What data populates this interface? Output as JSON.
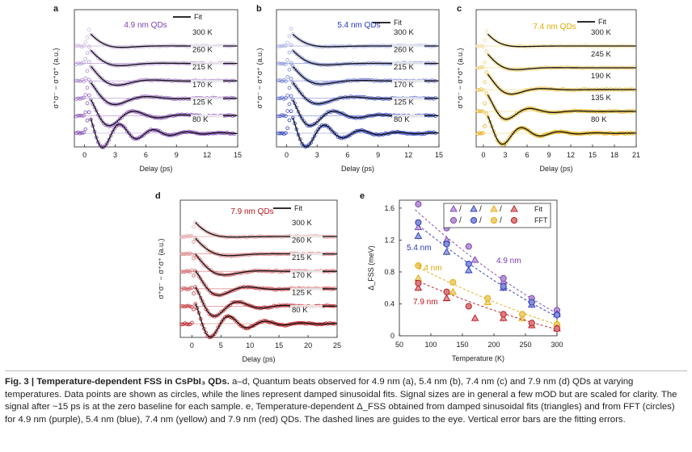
{
  "colors": {
    "purple": "#7a3fb0",
    "blue": "#2436b8",
    "yellow": "#e0a800",
    "red": "#b8141c",
    "fit": "#111111"
  },
  "chart_data": [
    {
      "type": "line",
      "panel": "a",
      "sample_label": "4.9 nm QDs",
      "legend": "Fit",
      "xlabel": "Delay (ps)",
      "ylabel": "σ⁺σ⁻ − σ⁺σ⁺ (a.u.)",
      "xlim": [
        -1,
        15
      ],
      "xticks": [
        "0",
        "3",
        "6",
        "9",
        "12",
        "15"
      ],
      "color": "#7a3fb0",
      "series_labels": [
        "300 K",
        "260 K",
        "215 K",
        "170 K",
        "125 K",
        "80 K"
      ],
      "period_ps": [
        9.0,
        8.2,
        7.0,
        6.3,
        4.8,
        3.3
      ],
      "decay_ps": [
        1.6,
        1.8,
        2.2,
        2.5,
        3.0,
        3.5
      ]
    },
    {
      "type": "line",
      "panel": "b",
      "sample_label": "5.4 nm QDs",
      "legend": "Fit",
      "xlabel": "Delay (ps)",
      "ylabel": "σ⁺σ⁻ − σ⁺σ⁺ (a.u.)",
      "xlim": [
        -1,
        15
      ],
      "xticks": [
        "0",
        "3",
        "6",
        "9",
        "12",
        "15"
      ],
      "color": "#2436b8",
      "series_labels": [
        "300 K",
        "260 K",
        "215 K",
        "170 K",
        "125 K",
        "80 K"
      ],
      "period_ps": [
        11.0,
        9.5,
        7.8,
        6.6,
        4.6,
        3.6
      ],
      "decay_ps": [
        1.5,
        1.7,
        2.0,
        2.4,
        2.9,
        3.4
      ]
    },
    {
      "type": "line",
      "panel": "c",
      "sample_label": "7.4 nm QDs",
      "legend": "Fit",
      "xlabel": "Delay (ps)",
      "ylabel": "σ⁺σ⁻ − σ⁺σ⁺ (a.u.)",
      "xlim": [
        -1,
        21
      ],
      "xticks": [
        "0",
        "3",
        "6",
        "9",
        "12",
        "15",
        "18",
        "21"
      ],
      "color": "#e0a800",
      "series_labels": [
        "300 K",
        "245 K",
        "190 K",
        "135 K",
        "80 K"
      ],
      "period_ps": [
        14.0,
        11.0,
        8.5,
        6.5,
        5.2
      ],
      "decay_ps": [
        1.8,
        2.2,
        2.8,
        3.3,
        3.8
      ]
    },
    {
      "type": "line",
      "panel": "d",
      "sample_label": "7.9 nm QDs",
      "legend": "Fit",
      "xlabel": "Delay (ps)",
      "ylabel": "σ⁺σ⁻ − σ⁺σ⁺ (a.u.)",
      "xlim": [
        -2,
        25
      ],
      "xticks": [
        "0",
        "5",
        "10",
        "15",
        "20",
        "25"
      ],
      "color": "#b8141c",
      "series_labels": [
        "300 K",
        "260 K",
        "215 K",
        "170 K",
        "125 K",
        "80 K"
      ],
      "period_ps": [
        20.0,
        16.0,
        13.0,
        10.0,
        8.0,
        6.3
      ],
      "decay_ps": [
        2.5,
        3.0,
        3.5,
        4.0,
        4.8,
        5.5
      ]
    },
    {
      "type": "scatter",
      "panel": "e",
      "xlabel": "Temperature (K)",
      "ylabel": "Δ_FSS (meV)",
      "xlim": [
        50,
        300
      ],
      "ylim": [
        0,
        1.7
      ],
      "xticks": [
        "50",
        "100",
        "150",
        "200",
        "250",
        "300"
      ],
      "yticks": [
        "0",
        "0.4",
        "0.8",
        "1.2",
        "1.6"
      ],
      "legend_rows": [
        {
          "separator": "/",
          "label": "Fit"
        },
        {
          "separator": "/",
          "label": "FFT"
        }
      ],
      "series": [
        {
          "name": "4.9 nm",
          "color": "#7a3fb0",
          "fit": {
            "x": [
              80,
              125,
              170,
              215,
              260,
              300
            ],
            "y": [
              1.36,
              1.2,
              0.95,
              0.68,
              0.45,
              0.3
            ]
          },
          "fft": {
            "x": [
              80,
              125,
              160,
              215,
              260,
              300
            ],
            "y": [
              1.65,
              1.35,
              1.12,
              0.72,
              0.47,
              0.32
            ]
          },
          "guide": {
            "x": [
              75,
              300
            ],
            "y": [
              1.58,
              0.28
            ]
          }
        },
        {
          "name": "5.4 nm",
          "color": "#2436b8",
          "fit": {
            "x": [
              80,
              125,
              160,
              215,
              260,
              300
            ],
            "y": [
              1.25,
              1.05,
              0.82,
              0.6,
              0.39,
              0.27
            ]
          },
          "fft": {
            "x": [
              80,
              125,
              160,
              215,
              260,
              300
            ],
            "y": [
              1.42,
              1.15,
              0.9,
              0.62,
              0.42,
              0.26
            ]
          },
          "guide": {
            "x": [
              75,
              300
            ],
            "y": [
              1.42,
              0.24
            ]
          }
        },
        {
          "name": "7.4 nm",
          "color": "#e0a800",
          "fit": {
            "x": [
              80,
              135,
              190,
              245,
              300
            ],
            "y": [
              0.72,
              0.55,
              0.42,
              0.22,
              0.15
            ]
          },
          "fft": {
            "x": [
              80,
              135,
              190,
              245,
              300
            ],
            "y": [
              0.88,
              0.67,
              0.47,
              0.27,
              0.14
            ]
          },
          "guide": {
            "x": [
              75,
              300
            ],
            "y": [
              0.88,
              0.14
            ]
          }
        },
        {
          "name": "7.9 nm",
          "color": "#b8141c",
          "fit": {
            "x": [
              80,
              125,
              170,
              215,
              260,
              300
            ],
            "y": [
              0.6,
              0.47,
              0.22,
              0.22,
              0.13,
              0.09
            ]
          },
          "fft": {
            "x": [
              80,
              125,
              160,
              215,
              260,
              300
            ],
            "y": [
              0.66,
              0.55,
              0.37,
              0.27,
              0.16,
              0.09
            ]
          },
          "guide": {
            "x": [
              75,
              300
            ],
            "y": [
              0.7,
              0.08
            ]
          }
        }
      ]
    }
  ],
  "caption": {
    "title": "Fig. 3 | Temperature-dependent FSS in CsPbI₃ QDs.",
    "text": "a–d, Quantum beats observed for 4.9 nm (a), 5.4 nm (b), 7.4 nm (c) and 7.9 nm (d) QDs at varying temperatures. Data points are shown as circles, while the lines represent damped sinusoidal fits. Signal sizes are in general a few mOD but are scaled for clarity. The signal after ~15 ps is at the zero baseline for each sample. e, Temperature-dependent Δ_FSS obtained from damped sinusoidal fits (triangles) and from FFT (circles) for 4.9 nm (purple), 5.4 nm (blue), 7.4 nm (yellow) and 7.9 nm (red) QDs. The dashed lines are guides to the eye. Vertical error bars are the fitting errors."
  }
}
